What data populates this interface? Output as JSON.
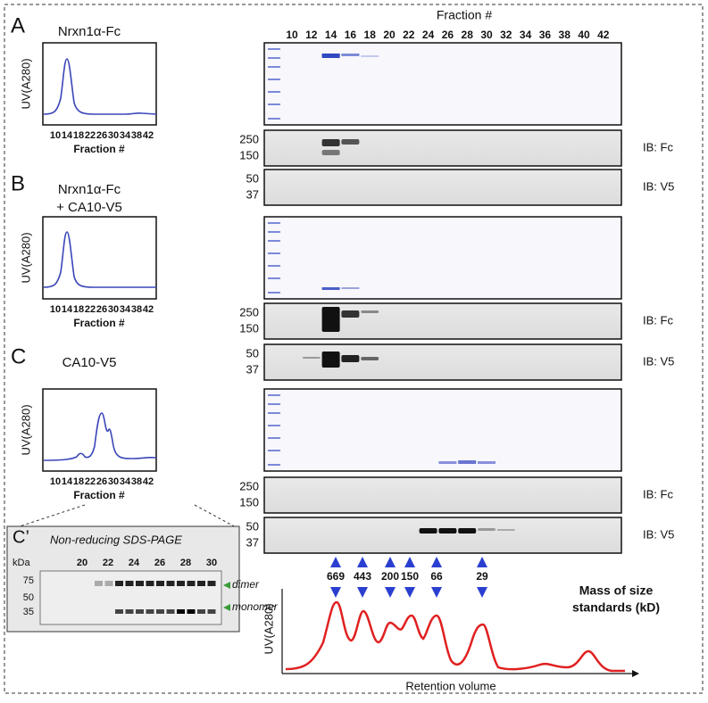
{
  "panels": [
    {
      "label": "A",
      "title": [
        "Nrxn1α-Fc"
      ],
      "y_label": "UV(A280)",
      "x_ticks": [
        10,
        14,
        18,
        22,
        26,
        30,
        34,
        38,
        42
      ],
      "x_label": "Fraction #"
    },
    {
      "label": "B",
      "title": [
        "Nrxn1α-Fc",
        "+ CA10-V5"
      ],
      "y_label": "UV(A280)",
      "x_ticks": [
        10,
        14,
        18,
        22,
        26,
        30,
        34,
        38,
        42
      ],
      "x_label": "Fraction #"
    },
    {
      "label": "C",
      "title": [
        "CA10-V5"
      ],
      "y_label": "UV(A280)",
      "x_ticks": [
        10,
        14,
        18,
        22,
        26,
        30,
        34,
        38,
        42
      ],
      "x_label": "Fraction #"
    }
  ],
  "gel_header": {
    "title": "Fraction #",
    "fractions": [
      10,
      12,
      14,
      16,
      18,
      20,
      22,
      24,
      26,
      28,
      30,
      32,
      34,
      36,
      38,
      40,
      42
    ]
  },
  "blots": [
    {
      "markers": [
        250,
        150
      ],
      "label": "IB: Fc"
    },
    {
      "markers": [
        50,
        37
      ],
      "label": "IB: V5"
    },
    {
      "markers": [
        250,
        150
      ],
      "label": "IB: Fc"
    },
    {
      "markers": [
        50,
        37
      ],
      "label": "IB: V5"
    },
    {
      "markers": [
        250,
        150
      ],
      "label": "IB: Fc"
    },
    {
      "markers": [
        50,
        37
      ],
      "label": "IB: V5"
    }
  ],
  "inset": {
    "label": "C’",
    "title": "Non-reducing SDS-PAGE",
    "unit": "kDa",
    "lanes": [
      20,
      22,
      24,
      26,
      28,
      30
    ],
    "markers": [
      75,
      50,
      35
    ],
    "bands": [
      "dimer",
      "monomer"
    ]
  },
  "standards": {
    "masses": [
      669,
      443,
      200,
      150,
      66,
      29
    ],
    "title": [
      "Mass of size",
      "standards (kD)"
    ],
    "y_label": "UV(A280)",
    "x_label": "Retention volume"
  }
}
